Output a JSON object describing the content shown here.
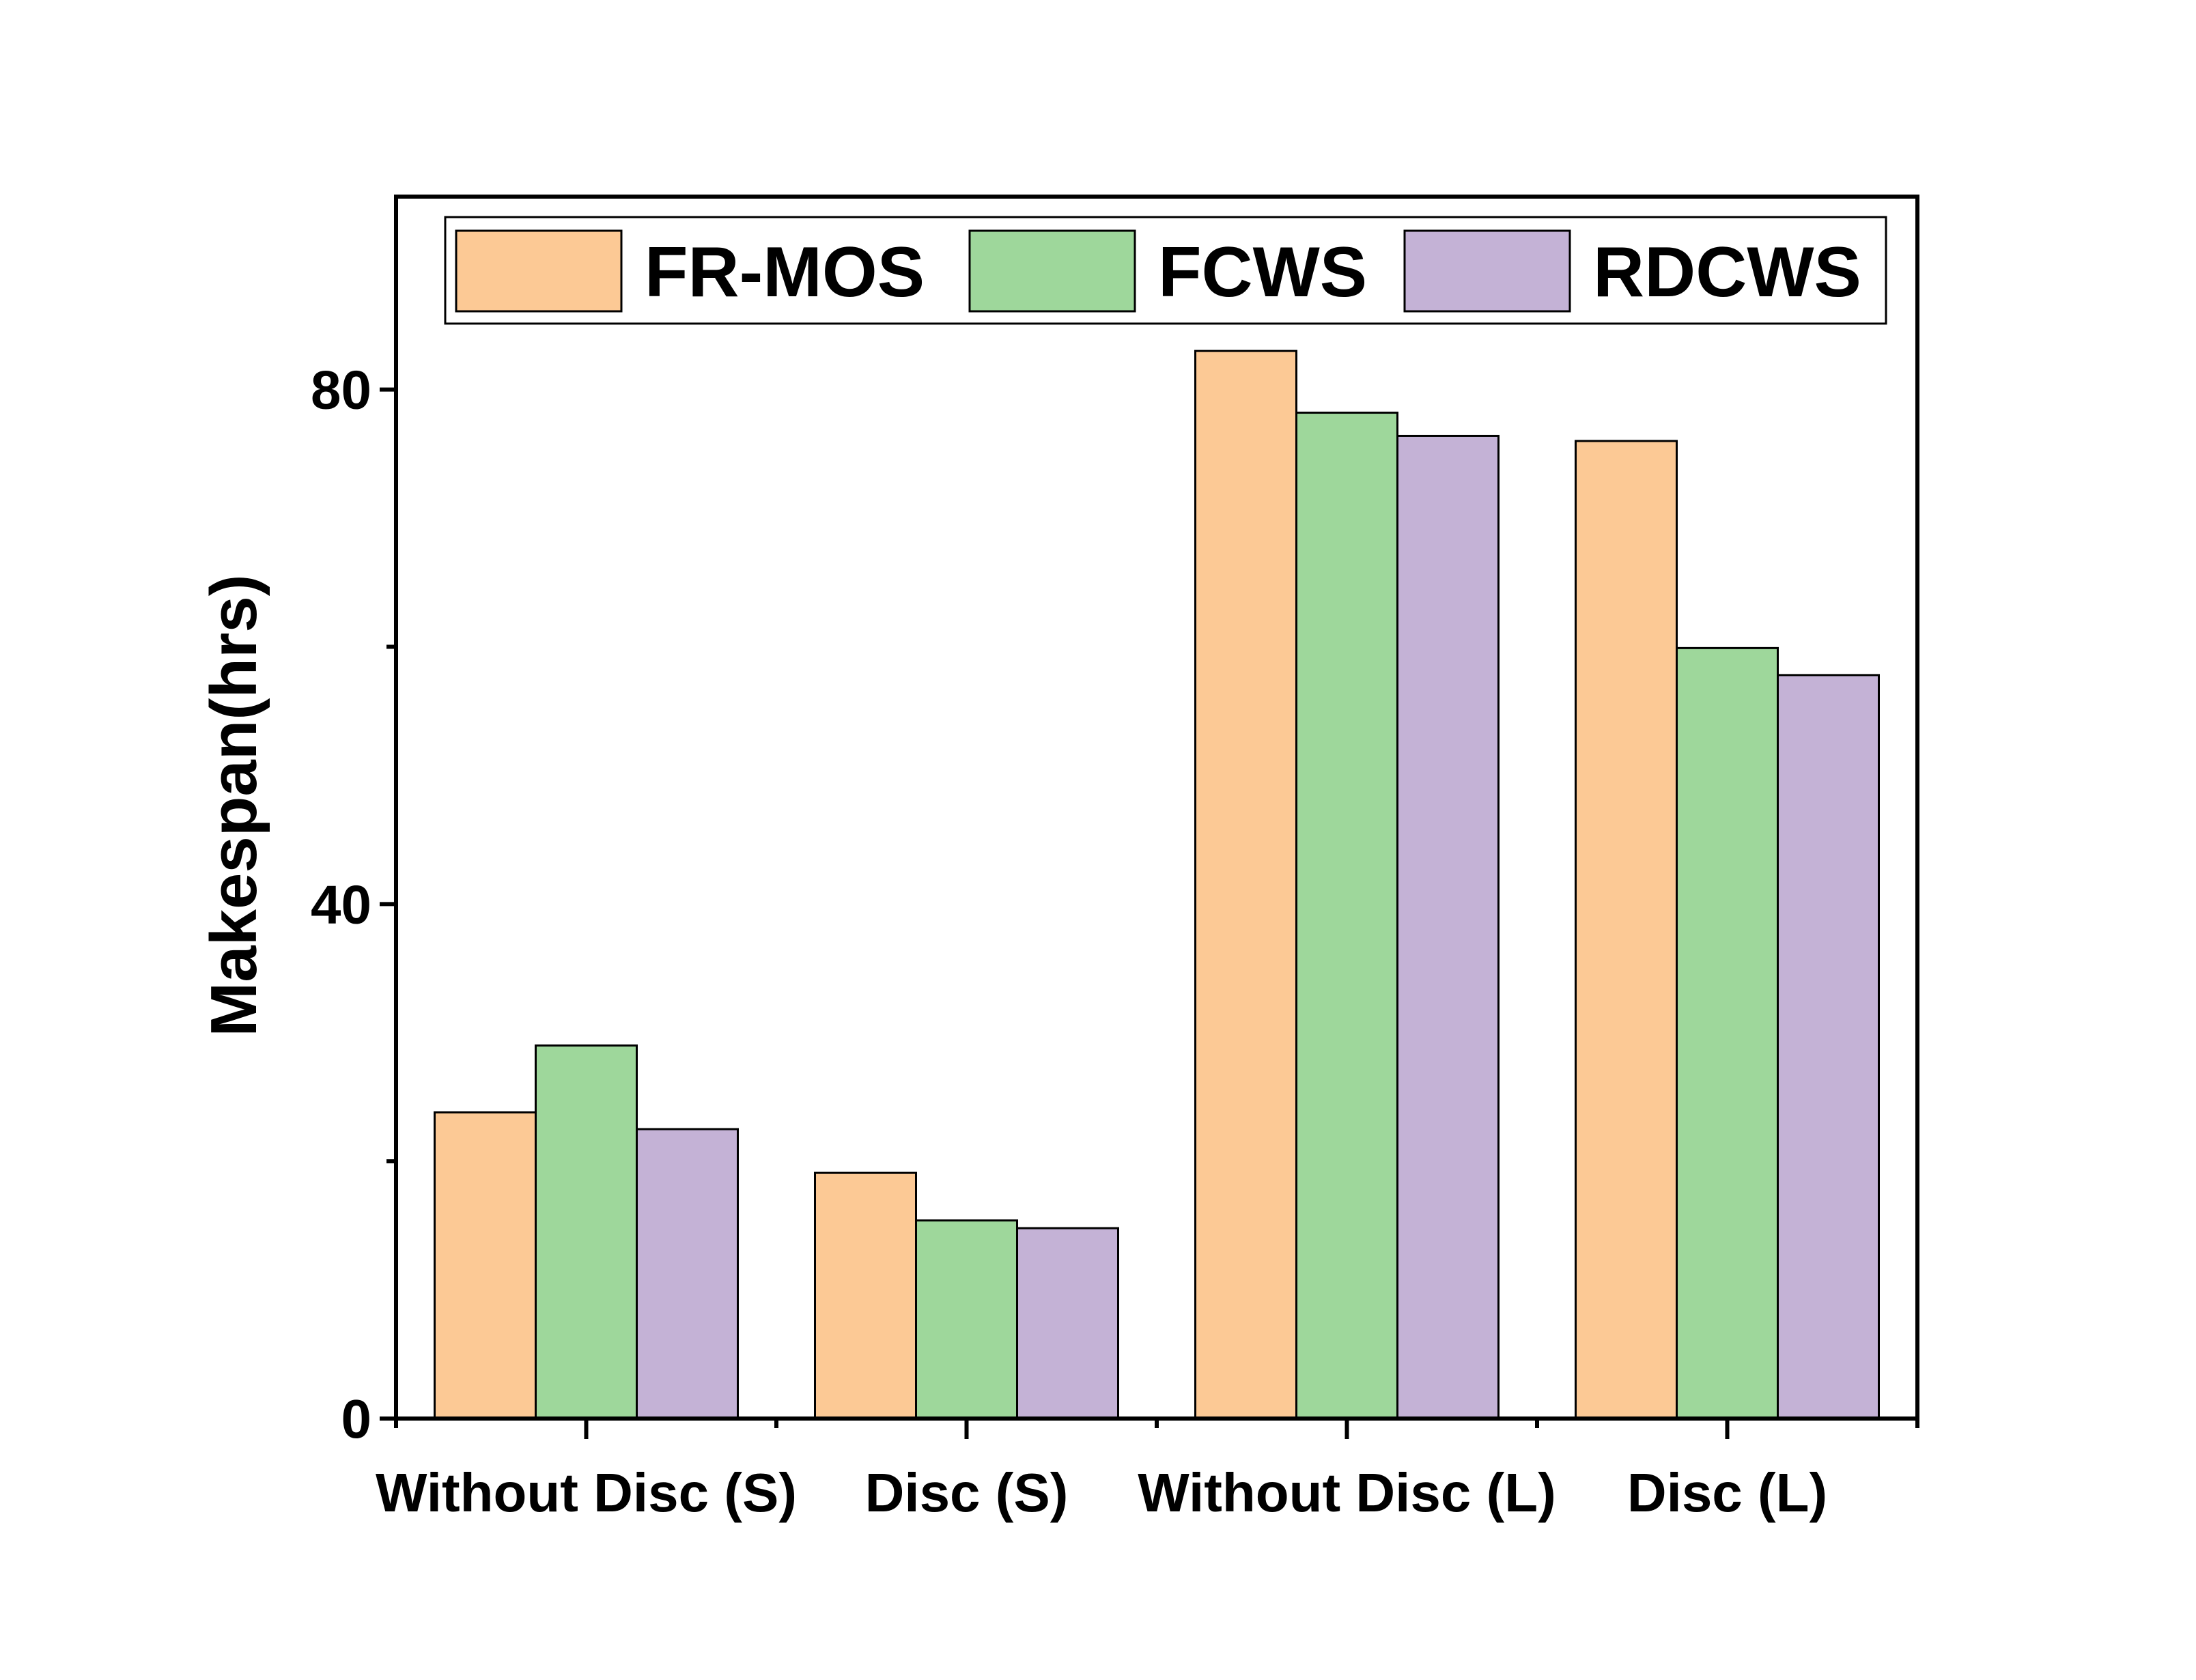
{
  "chart_data": {
    "type": "bar",
    "title": "",
    "xlabel": "",
    "ylabel": "Makespan(hrs)",
    "ylim": [
      0,
      95
    ],
    "yticks_major": [
      0,
      40,
      80
    ],
    "yticks_minor": [
      20,
      60
    ],
    "legend_position": "top",
    "categories": [
      "Without Disc (S)",
      "Disc (S)",
      "Without Disc (L)",
      "Disc (L)"
    ],
    "series": [
      {
        "name": "FR-MOS",
        "color": "#FCC995",
        "values": [
          23.8,
          19.1,
          83.0,
          76.0
        ]
      },
      {
        "name": "FCWS",
        "color": "#9ED79B",
        "values": [
          29.0,
          15.4,
          78.2,
          59.9
        ]
      },
      {
        "name": "RDCWS",
        "color": "#C4B2D6",
        "values": [
          22.5,
          14.8,
          76.4,
          57.8
        ]
      }
    ]
  }
}
